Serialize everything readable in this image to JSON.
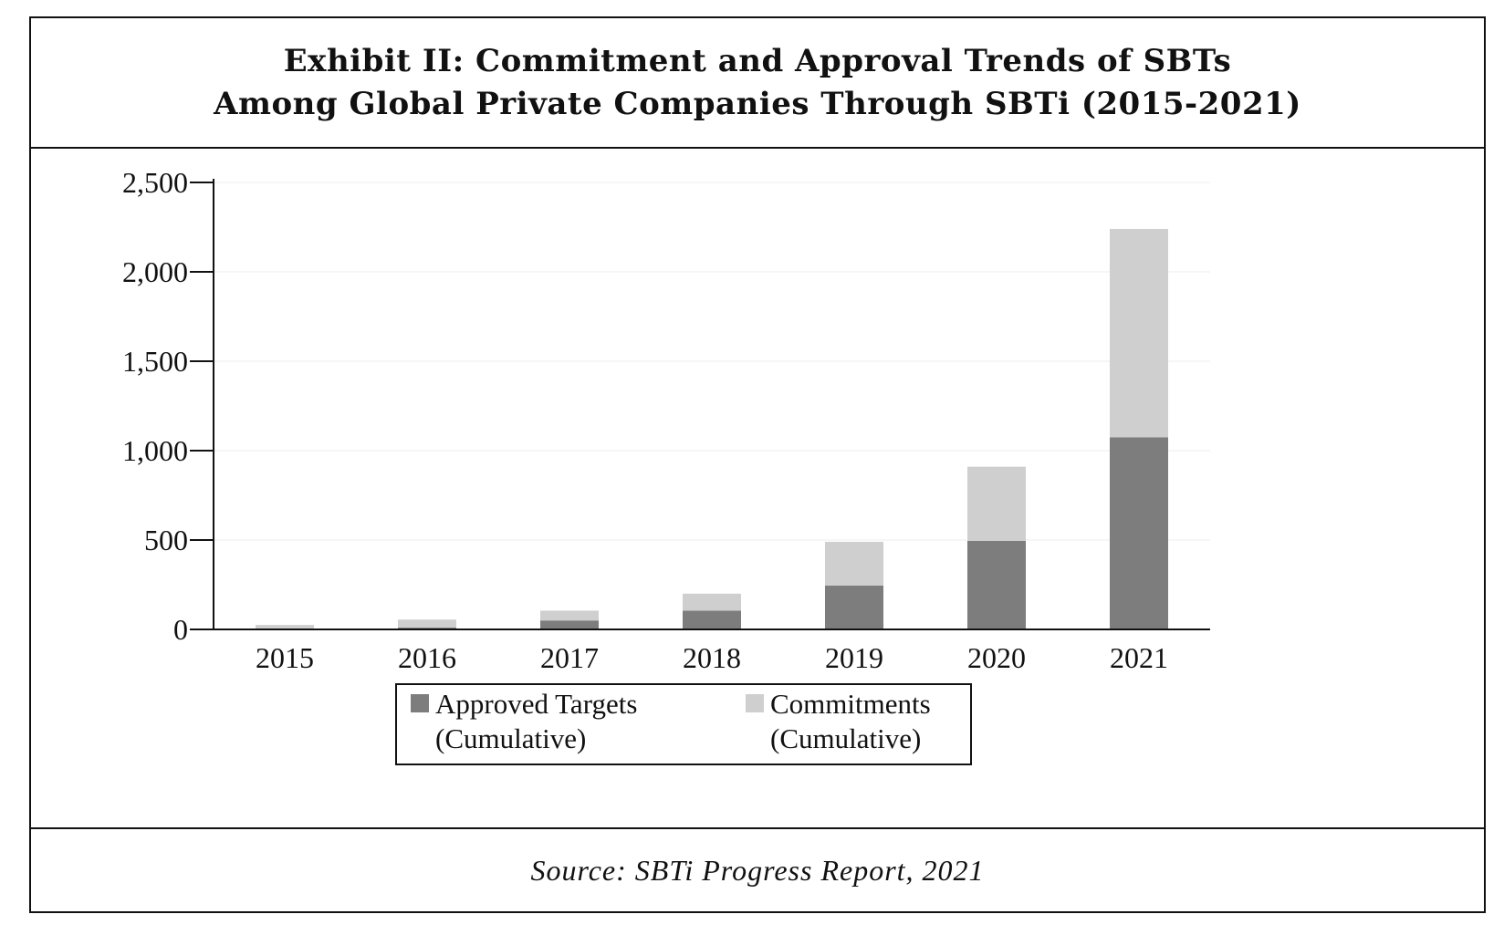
{
  "title": {
    "line1": "Exhibit II: Commitment and Approval Trends of SBTs",
    "line2": "Among Global Private Companies Through SBTi (2015-2021)"
  },
  "source": "Source: SBTi Progress Report, 2021",
  "chart_data": {
    "type": "bar",
    "stacked": true,
    "categories": [
      "2015",
      "2016",
      "2017",
      "2018",
      "2019",
      "2020",
      "2021"
    ],
    "series": [
      {
        "name": "Approved Targets (Cumulative)",
        "name_lines": [
          "Approved Targets",
          "(Cumulative)"
        ],
        "color": "#7d7d7d",
        "values": [
          0,
          10,
          50,
          105,
          245,
          495,
          1075
        ]
      },
      {
        "name": "Commitments (Cumulative)",
        "name_lines": [
          "Commitments",
          "(Cumulative)"
        ],
        "color": "#cfcfcf",
        "values": [
          25,
          45,
          55,
          95,
          245,
          415,
          1165
        ]
      }
    ],
    "y_ticks": [
      0,
      500,
      1000,
      1500,
      2000,
      2500
    ],
    "y_tick_labels": [
      "0",
      "500",
      "1,000",
      "1,500",
      "2,000",
      "2,500"
    ],
    "ylim": [
      0,
      2500
    ],
    "grid": true,
    "legend_position": "bottom-center"
  }
}
